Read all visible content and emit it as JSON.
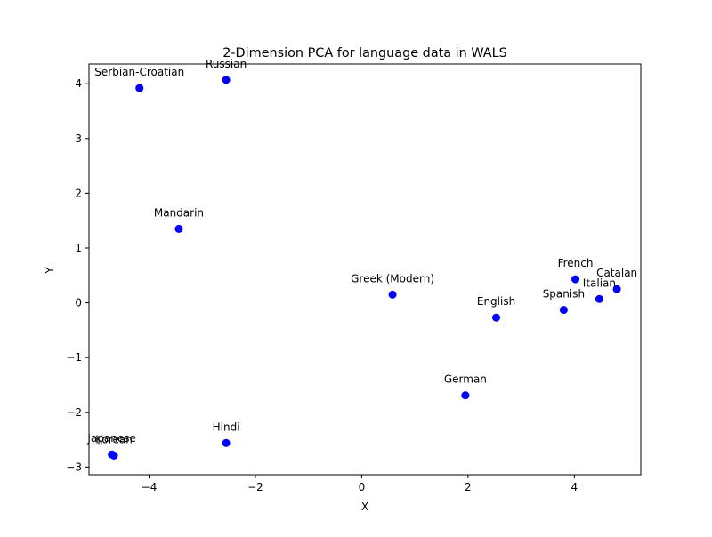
{
  "chart_data": {
    "type": "scatter",
    "title": "2-Dimension PCA for language data in WALS",
    "xlabel": "X",
    "ylabel": "Y",
    "xlim": [
      -5.13,
      5.25
    ],
    "ylim": [
      -3.14,
      4.36
    ],
    "xticks": [
      -4,
      -2,
      0,
      2,
      4
    ],
    "yticks": [
      -3,
      -2,
      -1,
      0,
      1,
      2,
      3,
      4
    ],
    "xtick_labels": [
      "−4",
      "−2",
      "0",
      "2",
      "4"
    ],
    "ytick_labels": [
      "−3",
      "−2",
      "−1",
      "0",
      "1",
      "2",
      "3",
      "4"
    ],
    "marker_color": "#0000ff",
    "grid": false,
    "points": [
      {
        "label": "Serbian-Croatian",
        "x": -4.18,
        "y": 3.92
      },
      {
        "label": "Russian",
        "x": -2.55,
        "y": 4.07
      },
      {
        "label": "Mandarin",
        "x": -3.44,
        "y": 1.35
      },
      {
        "label": "Greek (Modern)",
        "x": 0.58,
        "y": 0.15
      },
      {
        "label": "French",
        "x": 4.02,
        "y": 0.43
      },
      {
        "label": "Catalan",
        "x": 4.8,
        "y": 0.25
      },
      {
        "label": "Italian",
        "x": 4.47,
        "y": 0.07
      },
      {
        "label": "Spanish",
        "x": 3.8,
        "y": -0.13
      },
      {
        "label": "English",
        "x": 2.53,
        "y": -0.27
      },
      {
        "label": "German",
        "x": 1.95,
        "y": -1.69
      },
      {
        "label": "Hindi",
        "x": -2.55,
        "y": -2.56
      },
      {
        "label": "Japanese",
        "x": -4.7,
        "y": -2.77
      },
      {
        "label": "Korean",
        "x": -4.66,
        "y": -2.79
      }
    ]
  }
}
